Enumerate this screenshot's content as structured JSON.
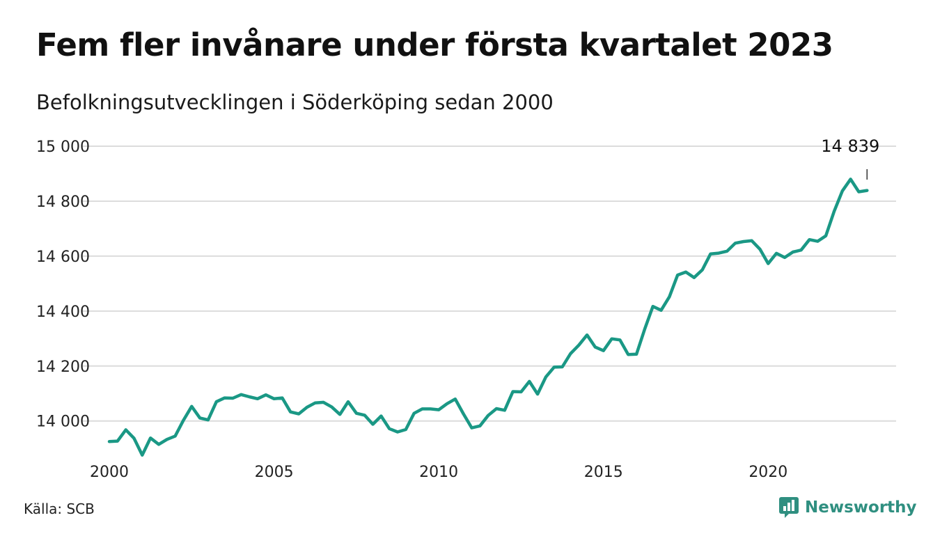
{
  "title": "Fem fler invånare under första kvartalet 2023",
  "subtitle": "Befolkningsutvecklingen i Söderköping sedan 2000",
  "source": "Källa: SCB",
  "brand": {
    "name": "Newsworthy",
    "icon": "newsworthy-logo-icon",
    "color": "#2f8f80"
  },
  "colors": {
    "line": "#1a9885",
    "grid": "#dcdcdc"
  },
  "chart_data": {
    "type": "line",
    "title": "Fem fler invånare under första kvartalet 2023",
    "subtitle": "Befolkningsutvecklingen i Söderköping sedan 2000",
    "xlabel": "",
    "ylabel": "",
    "xlim": [
      2000,
      2023.1
    ],
    "ylim": [
      13860,
      15000
    ],
    "x_ticks": [
      {
        "value": 2000,
        "label": "2000"
      },
      {
        "value": 2005,
        "label": "2005"
      },
      {
        "value": 2010,
        "label": "2010"
      },
      {
        "value": 2015,
        "label": "2015"
      },
      {
        "value": 2020,
        "label": "2020"
      }
    ],
    "y_ticks": [
      {
        "value": 14000,
        "label": "14 000"
      },
      {
        "value": 14200,
        "label": "14 200"
      },
      {
        "value": 14400,
        "label": "14 400"
      },
      {
        "value": 14600,
        "label": "14 600"
      },
      {
        "value": 14800,
        "label": "14 800"
      },
      {
        "value": 15000,
        "label": "15 000"
      }
    ],
    "grid": true,
    "legend": "none",
    "annotation": {
      "x": 2023.0,
      "label": "14 839"
    },
    "series": [
      {
        "x": [
          2000.0,
          2000.25,
          2000.5,
          2000.75,
          2001.0,
          2001.25,
          2001.5,
          2001.75,
          2002.0,
          2002.25,
          2002.5,
          2002.75,
          2003.0,
          2003.25,
          2003.5,
          2003.75,
          2004.0,
          2004.25,
          2004.5,
          2004.75,
          2005.0,
          2005.25,
          2005.5,
          2005.75,
          2006.0,
          2006.25,
          2006.5,
          2006.75,
          2007.0,
          2007.25,
          2007.5,
          2007.75,
          2008.0,
          2008.25,
          2008.5,
          2008.75,
          2009.0,
          2009.25,
          2009.5,
          2009.75,
          2010.0,
          2010.25,
          2010.5,
          2010.75,
          2011.0,
          2011.25,
          2011.5,
          2011.75,
          2012.0,
          2012.25,
          2012.5,
          2012.75,
          2013.0,
          2013.25,
          2013.5,
          2013.75,
          2014.0,
          2014.25,
          2014.5,
          2014.75,
          2015.0,
          2015.25,
          2015.5,
          2015.75,
          2016.0,
          2016.25,
          2016.5,
          2016.75,
          2017.0,
          2017.25,
          2017.5,
          2017.75,
          2018.0,
          2018.25,
          2018.5,
          2018.75,
          2019.0,
          2019.25,
          2019.5,
          2019.75,
          2020.0,
          2020.25,
          2020.5,
          2020.75,
          2021.0,
          2021.25,
          2021.5,
          2021.75,
          2022.0,
          2022.25,
          2022.5,
          2022.75,
          2023.0
        ],
        "values": [
          13925,
          13927,
          13968,
          13937,
          13876,
          13938,
          13915,
          13933,
          13945,
          14003,
          14053,
          14011,
          14004,
          14070,
          14084,
          14083,
          14096,
          14088,
          14081,
          14095,
          14081,
          14084,
          14033,
          14026,
          14050,
          14066,
          14068,
          14051,
          14024,
          14070,
          14028,
          14021,
          13988,
          14018,
          13972,
          13960,
          13969,
          14028,
          14044,
          14044,
          14041,
          14063,
          14080,
          14026,
          13975,
          13982,
          14020,
          14045,
          14039,
          14107,
          14106,
          14144,
          14098,
          14160,
          14196,
          14197,
          14245,
          14276,
          14313,
          14269,
          14256,
          14299,
          14295,
          14242,
          14243,
          14334,
          14417,
          14403,
          14452,
          14531,
          14542,
          14522,
          14550,
          14608,
          14611,
          14618,
          14647,
          14653,
          14656,
          14625,
          14573,
          14610,
          14595,
          14615,
          14622,
          14660,
          14654,
          14674,
          14763,
          14837,
          14880,
          14834,
          14839
        ]
      }
    ]
  }
}
